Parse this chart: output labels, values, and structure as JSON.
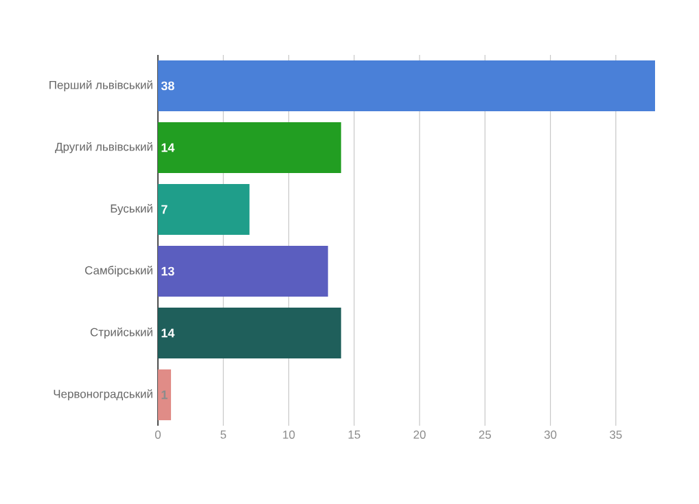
{
  "chart_data": {
    "type": "bar",
    "orientation": "horizontal",
    "categories": [
      "Перший львівський",
      "Другий львівський",
      "Буський",
      "Самбірський",
      "Стрийський",
      "Червоноградський"
    ],
    "values": [
      38,
      14,
      7,
      13,
      14,
      1
    ],
    "colors": [
      "#4a80d8",
      "#229e22",
      "#1f9e8a",
      "#5b5ebf",
      "#1f5f5b",
      "#e08c87"
    ],
    "xlim": [
      0,
      38
    ],
    "xticks": [
      0,
      5,
      10,
      15,
      20,
      25,
      30,
      35
    ],
    "grid": "x",
    "data_labels": true
  }
}
